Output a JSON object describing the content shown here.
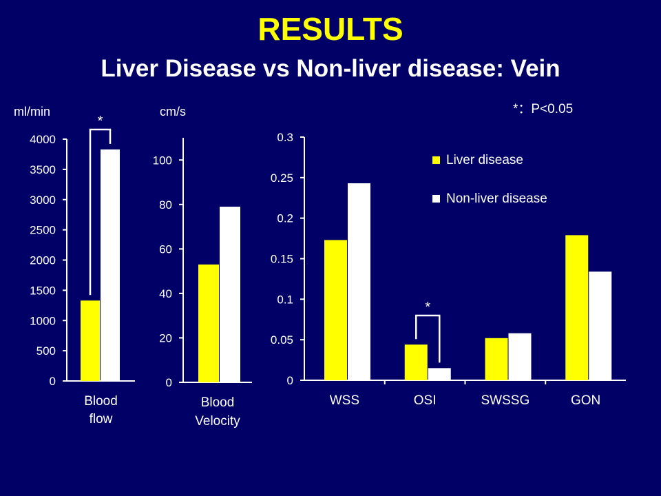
{
  "slide": {
    "title": "RESULTS",
    "subtitle": "Liver Disease vs Non-liver disease: Vein",
    "significance_note": "*：P<0.05"
  },
  "colors": {
    "background": "#000066",
    "title": "#FFFF00",
    "text": "#FFFFFF",
    "liver": "#FFFF00",
    "nonliver": "#FFFFFF"
  },
  "chart_data": [
    {
      "type": "bar",
      "unit_label": "ml/min",
      "categories": [
        "Blood flow"
      ],
      "category_lines": [
        [
          "Blood",
          "flow"
        ]
      ],
      "series": [
        {
          "name": "Liver disease",
          "values": [
            1330
          ]
        },
        {
          "name": "Non-liver disease",
          "values": [
            3830
          ]
        }
      ],
      "ylim": [
        0,
        4000
      ],
      "yticks": [
        0,
        500,
        1000,
        1500,
        2000,
        2500,
        3000,
        3500,
        4000
      ],
      "ytick_labels": [
        "0",
        "500",
        "1000",
        "1500",
        "2000",
        "2500",
        "3000",
        "3500",
        "4000"
      ],
      "significance": [
        {
          "category": 0,
          "label": "*"
        }
      ]
    },
    {
      "type": "bar",
      "unit_label": "cm/s",
      "categories": [
        "Blood Velocity"
      ],
      "category_lines": [
        [
          "Blood",
          "Velocity"
        ]
      ],
      "series": [
        {
          "name": "Liver disease",
          "values": [
            53
          ]
        },
        {
          "name": "Non-liver disease",
          "values": [
            79
          ]
        }
      ],
      "ylim": [
        0,
        110
      ],
      "yticks": [
        0,
        20,
        40,
        60,
        80,
        100
      ],
      "ytick_labels": [
        "0",
        "20",
        "40",
        "60",
        "80",
        "100"
      ],
      "significance": []
    },
    {
      "type": "bar",
      "unit_label": "",
      "categories": [
        "WSS",
        "OSI",
        "SWSSG",
        "GON"
      ],
      "category_lines": [
        [
          "WSS"
        ],
        [
          "OSI"
        ],
        [
          "SWSSG"
        ],
        [
          "GON"
        ]
      ],
      "series": [
        {
          "name": "Liver disease",
          "values": [
            0.173,
            0.044,
            0.052,
            0.179
          ]
        },
        {
          "name": "Non-liver disease",
          "values": [
            0.243,
            0.015,
            0.058,
            0.134
          ]
        }
      ],
      "ylim": [
        0,
        0.3
      ],
      "yticks": [
        0,
        0.05,
        0.1,
        0.15,
        0.2,
        0.25,
        0.3
      ],
      "ytick_labels": [
        "0",
        "0.05",
        "0.1",
        "0.15",
        "0.2",
        "0.25",
        "0.3"
      ],
      "legend": [
        "Liver disease",
        "Non-liver disease"
      ],
      "legend_position": "top-right",
      "significance": [
        {
          "category": 1,
          "label": "*"
        }
      ]
    }
  ]
}
